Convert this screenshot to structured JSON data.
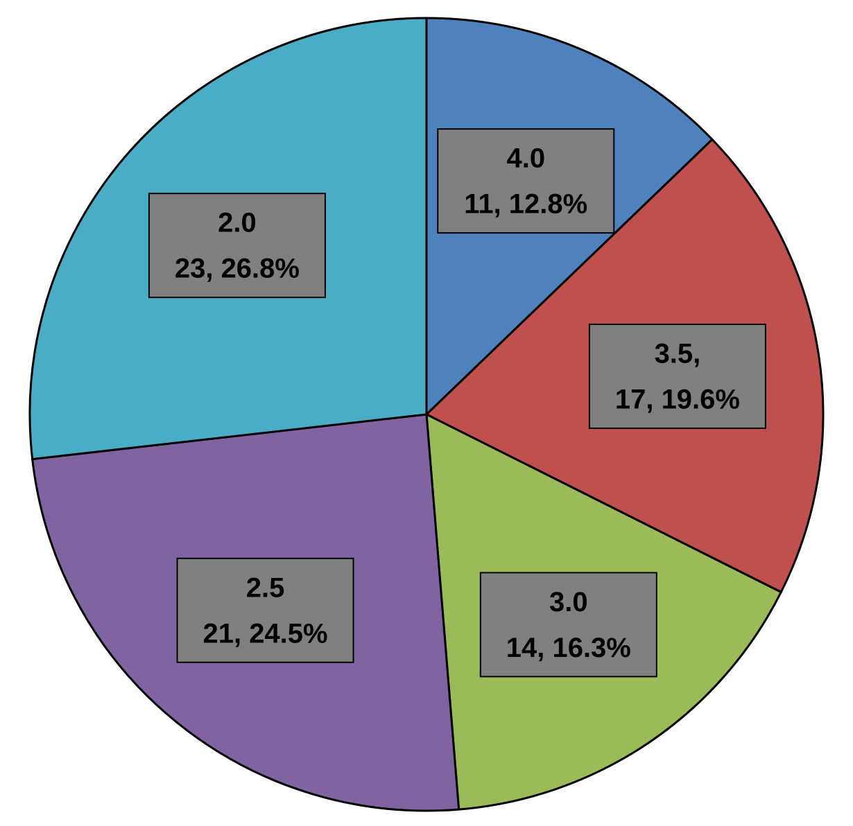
{
  "chart_data": {
    "type": "pie",
    "categories": [
      "4.0",
      "3.5,",
      "3.0",
      "2.5",
      "2.0"
    ],
    "values": [
      12.8,
      19.6,
      16.3,
      24.5,
      26.8
    ],
    "value_labels": [
      "11, 12.8%",
      "17, 19.6%",
      "14, 16.3%",
      "21, 24.5%",
      "23, 26.8%"
    ],
    "colors": [
      "#4f81bd",
      "#c0504d",
      "#9bbb59",
      "#8064a2",
      "#4bacc6"
    ]
  }
}
